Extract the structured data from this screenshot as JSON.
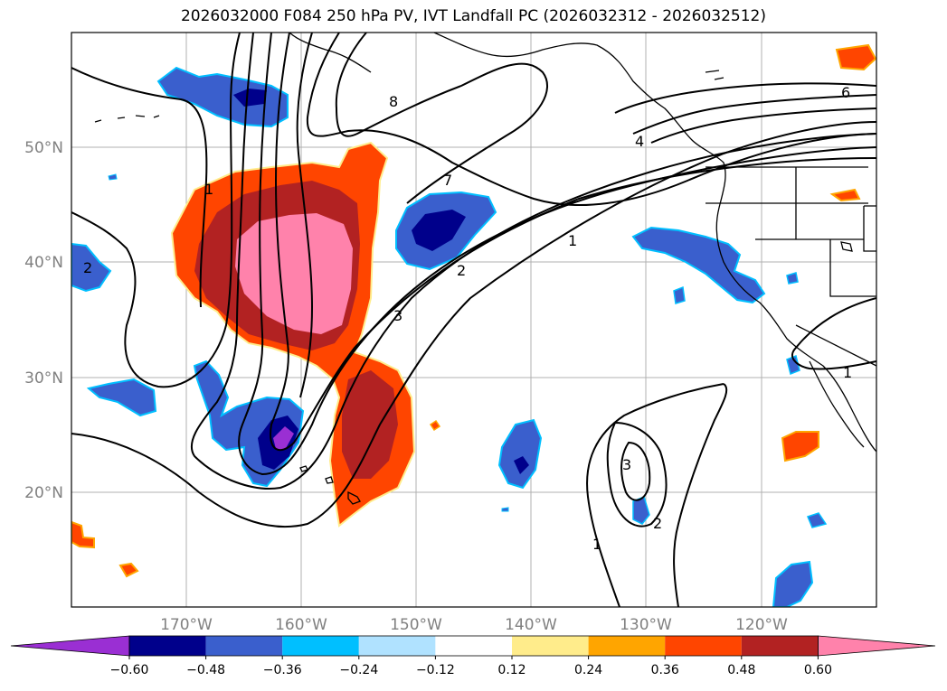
{
  "title": "2026032000 F084 250 hPa PV, IVT Landfall PC (2026032312 - 2026032512)",
  "map": {
    "lon_labels": [
      "170°W",
      "160°W",
      "150°W",
      "140°W",
      "130°W",
      "120°W"
    ],
    "lat_labels": [
      "50°N",
      "40°N",
      "30°N",
      "20°N"
    ],
    "contour_labels": [
      "8",
      "7",
      "6",
      "4",
      "1",
      "2",
      "3",
      "2",
      "1",
      "1",
      "3",
      "2",
      "1"
    ]
  },
  "colorbar": {
    "ticks": [
      "−0.60",
      "−0.48",
      "−0.36",
      "−0.24",
      "−0.12",
      "0.12",
      "0.24",
      "0.36",
      "0.48",
      "0.60"
    ],
    "colors": [
      "#9a2fd3",
      "#00008b",
      "#3a5fcd",
      "#00bfff",
      "#b0e2ff",
      "#ffffff",
      "#ffec8b",
      "#ffa500",
      "#ff4500",
      "#b22222",
      "#ff82ab"
    ]
  }
}
